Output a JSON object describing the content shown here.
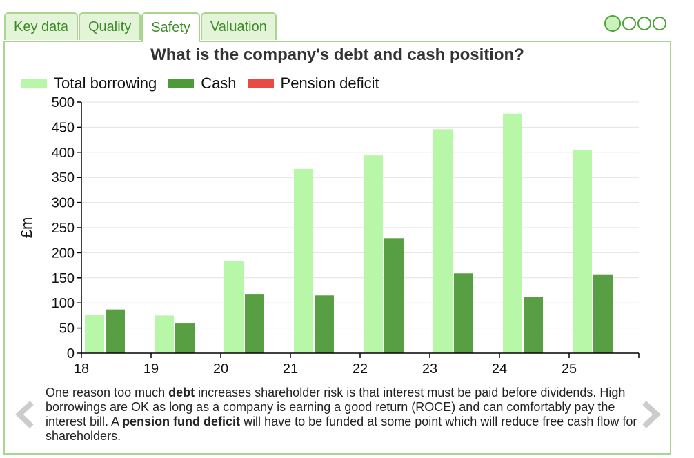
{
  "tabs": [
    {
      "label": "Key data"
    },
    {
      "label": "Quality"
    },
    {
      "label": "Safety"
    },
    {
      "label": "Valuation"
    }
  ],
  "active_tab": 2,
  "pager": {
    "count": 4,
    "active": 0
  },
  "colors": {
    "total_borrowing": "#b9f7a8",
    "cash": "#4e9a38",
    "pension_deficit": "#e84a44",
    "accent": "#3d8b27"
  },
  "chart_data": {
    "type": "bar",
    "title": "What is the company's debt and cash position?",
    "xlabel": "",
    "ylabel": "£m",
    "ylim": [
      0,
      500
    ],
    "yticks": [
      0,
      50,
      100,
      150,
      200,
      250,
      300,
      350,
      400,
      450,
      500
    ],
    "categories": [
      "18",
      "19",
      "20",
      "21",
      "22",
      "23",
      "24",
      "25"
    ],
    "grid": true,
    "legend": "top-left",
    "series": [
      {
        "name": "Total borrowing",
        "color": "#b9f7a8",
        "values": [
          77,
          75,
          184,
          367,
          394,
          446,
          477,
          404
        ]
      },
      {
        "name": "Cash",
        "color": "#4e9a38",
        "values": [
          87,
          59,
          118,
          115,
          229,
          159,
          112,
          157
        ]
      },
      {
        "name": "Pension deficit",
        "color": "#e84a44",
        "values": [
          0,
          0,
          0,
          0,
          0,
          0,
          0,
          0
        ]
      }
    ]
  },
  "description": {
    "t1": "One reason too much ",
    "b1": "debt",
    "t2": " increases shareholder risk is that interest must be paid before dividends. High borrowings are OK as long as a company is earning a good return (ROCE) and can comfortably pay the interest bill. A ",
    "b2": "pension fund deficit",
    "t3": " will have to be funded at some point which will reduce free cash flow for shareholders."
  },
  "nav": {
    "prev_icon": "chevron-left-icon",
    "next_icon": "chevron-right-icon"
  }
}
